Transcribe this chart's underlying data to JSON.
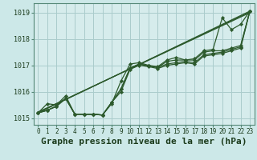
{
  "title": "Graphe pression niveau de la mer (hPa)",
  "bg_color": "#cce8e8",
  "plot_bg_color": "#d6ecec",
  "grid_color": "#aacccc",
  "line_color": "#2d5a2d",
  "xlim": [
    -0.5,
    23.5
  ],
  "ylim": [
    1014.75,
    1019.35
  ],
  "yticks": [
    1015,
    1016,
    1017,
    1018,
    1019
  ],
  "xtick_labels": [
    "0",
    "1",
    "2",
    "3",
    "4",
    "5",
    "6",
    "7",
    "8",
    "9",
    "10",
    "11",
    "12",
    "13",
    "14",
    "15",
    "16",
    "17",
    "18",
    "19",
    "20",
    "21",
    "22",
    "23"
  ],
  "series": [
    [
      1015.2,
      1015.55,
      1015.5,
      1015.85,
      1015.15,
      1015.15,
      1015.15,
      1015.12,
      1015.55,
      1016.4,
      1017.05,
      1017.1,
      1017.0,
      1016.95,
      1017.2,
      1017.3,
      1017.2,
      1017.25,
      1017.55,
      1017.6,
      1018.8,
      1018.35,
      1018.55,
      1019.05
    ],
    [
      1015.2,
      1015.3,
      1015.45,
      1015.75,
      1015.15,
      1015.15,
      1015.15,
      1015.12,
      1015.6,
      1016.1,
      1016.9,
      1017.05,
      1016.98,
      1016.92,
      1017.15,
      1017.2,
      1017.2,
      1017.2,
      1017.5,
      1017.55,
      1017.55,
      1017.65,
      1017.75,
      1019.05
    ],
    [
      1015.2,
      1015.3,
      1015.45,
      1015.75,
      1015.15,
      1015.15,
      1015.15,
      1015.12,
      1015.6,
      1016.1,
      1016.9,
      1017.05,
      1016.98,
      1016.92,
      1017.05,
      1017.1,
      1017.15,
      1017.1,
      1017.4,
      1017.45,
      1017.5,
      1017.6,
      1017.7,
      1019.05
    ],
    [
      1015.2,
      1015.3,
      1015.45,
      1015.75,
      1015.15,
      1015.15,
      1015.15,
      1015.12,
      1015.6,
      1016.0,
      1016.85,
      1017.0,
      1016.95,
      1016.88,
      1017.0,
      1017.05,
      1017.1,
      1017.05,
      1017.35,
      1017.4,
      1017.45,
      1017.55,
      1017.65,
      1019.05
    ]
  ],
  "straight_lines": [
    [
      [
        0,
        1015.2
      ],
      [
        23,
        1019.05
      ]
    ],
    [
      [
        0,
        1015.2
      ],
      [
        23,
        1019.05
      ]
    ],
    [
      [
        0,
        1015.2
      ],
      [
        23,
        1019.05
      ]
    ]
  ],
  "title_fontsize": 8,
  "tick_fontsize": 6,
  "marker": "D",
  "markersize": 2.2,
  "linewidth": 0.9
}
